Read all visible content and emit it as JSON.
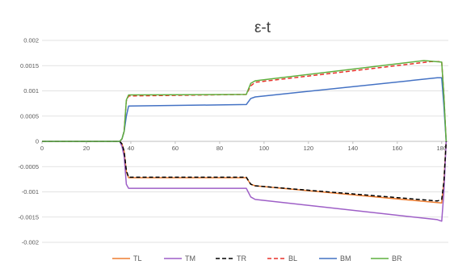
{
  "chart_data": {
    "type": "line",
    "title": "ε-t",
    "xlabel": "",
    "ylabel": "",
    "xlim": [
      0,
      183
    ],
    "ylim": [
      -0.002,
      0.002
    ],
    "x_ticks": [
      "0",
      "20",
      "40",
      "60",
      "80",
      "100",
      "120",
      "140",
      "160",
      "180"
    ],
    "x_tick_values": [
      0,
      20,
      40,
      60,
      80,
      100,
      120,
      140,
      160,
      180
    ],
    "y_ticks": [
      "0.002",
      "0.0015",
      "0.001",
      "0.0005",
      "0",
      "-0.0005",
      "-0.001",
      "-0.0015",
      "-0.002"
    ],
    "y_tick_values": [
      0.002,
      0.0015,
      0.001,
      0.0005,
      0,
      -0.0005,
      -0.001,
      -0.0015,
      -0.002
    ],
    "grid": true,
    "legend_position": "bottom",
    "series": [
      {
        "name": "TL",
        "color": "#ED7D31",
        "dash": "solid",
        "points": [
          [
            0,
            0
          ],
          [
            35,
            0
          ],
          [
            36,
            -5e-05
          ],
          [
            37,
            -0.0002
          ],
          [
            38,
            -0.0006
          ],
          [
            39,
            -0.00072
          ],
          [
            92,
            -0.00072
          ],
          [
            94,
            -0.00085
          ],
          [
            96,
            -0.00088
          ],
          [
            180,
            -0.00122
          ],
          [
            181,
            -0.0008
          ],
          [
            182,
            0
          ]
        ]
      },
      {
        "name": "TM",
        "color": "#9E5FC7",
        "dash": "solid",
        "points": [
          [
            0,
            0
          ],
          [
            35,
            0
          ],
          [
            36,
            -0.0001
          ],
          [
            37,
            -0.0003
          ],
          [
            38,
            -0.00085
          ],
          [
            39,
            -0.00093
          ],
          [
            92,
            -0.00093
          ],
          [
            94,
            -0.0011
          ],
          [
            96,
            -0.00115
          ],
          [
            178,
            -0.00155
          ],
          [
            180,
            -0.00158
          ],
          [
            181,
            -0.001
          ],
          [
            182,
            0
          ]
        ]
      },
      {
        "name": "TR",
        "color": "#000000",
        "dash": "dashed",
        "points": [
          [
            0,
            0
          ],
          [
            35,
            0
          ],
          [
            36,
            -5e-05
          ],
          [
            37,
            -0.0002
          ],
          [
            38,
            -0.00058
          ],
          [
            39,
            -0.00071
          ],
          [
            92,
            -0.00071
          ],
          [
            94,
            -0.00085
          ],
          [
            96,
            -0.00088
          ],
          [
            178,
            -0.00118
          ],
          [
            180,
            -0.00115
          ],
          [
            181,
            -0.0008
          ],
          [
            182,
            0
          ]
        ]
      },
      {
        "name": "BL",
        "color": "#E8312A",
        "dash": "dashed",
        "points": [
          [
            0,
            0
          ],
          [
            35,
            0
          ],
          [
            36,
            5e-05
          ],
          [
            37,
            0.0002
          ],
          [
            38,
            0.0008
          ],
          [
            39,
            0.0009
          ],
          [
            92,
            0.00093
          ],
          [
            94,
            0.0011
          ],
          [
            96,
            0.00117
          ],
          [
            175,
            0.00158
          ],
          [
            180,
            0.00158
          ],
          [
            181,
            0.0009
          ],
          [
            182,
            0
          ]
        ]
      },
      {
        "name": "BM",
        "color": "#4472C4",
        "dash": "solid",
        "points": [
          [
            0,
            0
          ],
          [
            35,
            0
          ],
          [
            36,
            5e-05
          ],
          [
            37,
            0.0002
          ],
          [
            38,
            0.0005
          ],
          [
            39,
            0.0007
          ],
          [
            92,
            0.00073
          ],
          [
            94,
            0.00085
          ],
          [
            96,
            0.00088
          ],
          [
            178,
            0.00126
          ],
          [
            180,
            0.00126
          ],
          [
            181,
            0.0007
          ],
          [
            182,
            0
          ]
        ]
      },
      {
        "name": "BR",
        "color": "#5FAF3E",
        "dash": "solid",
        "points": [
          [
            0,
            0
          ],
          [
            35,
            0
          ],
          [
            36,
            5e-05
          ],
          [
            37,
            0.0002
          ],
          [
            38,
            0.00082
          ],
          [
            39,
            0.00092
          ],
          [
            92,
            0.00093
          ],
          [
            94,
            0.00115
          ],
          [
            96,
            0.0012
          ],
          [
            172,
            0.0016
          ],
          [
            180,
            0.00157
          ],
          [
            181,
            0.0009
          ],
          [
            182,
            0
          ]
        ]
      }
    ]
  }
}
